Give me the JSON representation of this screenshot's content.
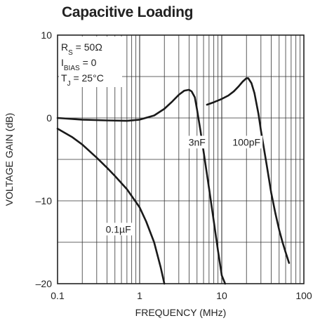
{
  "chart_data": {
    "type": "line",
    "title": "Capacitive Loading",
    "xlabel": "FREQUENCY (MHz)",
    "ylabel": "VOLTAGE GAIN (dB)",
    "x_scale": "log",
    "xlim": [
      0.1,
      100
    ],
    "ylim": [
      -20,
      10
    ],
    "x_ticks": [
      0.1,
      1,
      10,
      100
    ],
    "x_tick_labels": [
      "0.1",
      "1",
      "10",
      "100"
    ],
    "y_ticks": [
      -20,
      -10,
      0,
      10
    ],
    "y_tick_labels": [
      "–20",
      "–10",
      "0",
      "10"
    ],
    "grid": true,
    "conditions": [
      {
        "main": "R",
        "sub": "S",
        "rest": " = 50Ω"
      },
      {
        "main": "I",
        "sub": "BIAS",
        "rest": " = 0"
      },
      {
        "main": "T",
        "sub": "J",
        "rest": " = 25°C"
      }
    ],
    "series": [
      {
        "name": "3nF",
        "x": [
          0.1,
          0.2,
          0.4,
          0.7,
          1.0,
          1.5,
          2.0,
          2.5,
          3.0,
          3.5,
          4.0,
          4.3,
          4.7,
          5.0,
          5.5,
          6.0,
          7.0,
          8.0,
          9.0,
          10.0,
          11.0
        ],
        "y": [
          0.0,
          -0.2,
          -0.3,
          -0.35,
          -0.2,
          0.3,
          1.1,
          2.0,
          2.8,
          3.3,
          3.4,
          3.2,
          2.5,
          1.0,
          -1.5,
          -4.0,
          -8.5,
          -12.5,
          -16.0,
          -19.0,
          -20.0
        ]
      },
      {
        "name": "100pF",
        "x": [
          6.6,
          8.0,
          10.0,
          12.0,
          14.0,
          16.0,
          18.0,
          20.0,
          21.0,
          23.0,
          25.0,
          28.0,
          30.0,
          35.0,
          40.0,
          45.0,
          50.0,
          55.0,
          60.0,
          66.0
        ],
        "y": [
          1.6,
          1.9,
          2.3,
          2.7,
          3.2,
          3.8,
          4.4,
          4.8,
          4.8,
          4.2,
          3.0,
          0.5,
          -1.5,
          -5.5,
          -9.0,
          -11.5,
          -13.5,
          -15.0,
          -16.2,
          -17.5
        ]
      },
      {
        "name": "0.1µF",
        "x": [
          0.1,
          0.15,
          0.2,
          0.3,
          0.4,
          0.5,
          0.7,
          1.0,
          1.2,
          1.5,
          1.8,
          2.0
        ],
        "y": [
          -1.3,
          -2.3,
          -3.2,
          -4.8,
          -6.0,
          -7.0,
          -8.6,
          -10.8,
          -12.5,
          -15.0,
          -18.0,
          -20.0
        ]
      }
    ],
    "curve_labels": [
      "3nF",
      "100pF",
      "0.1µF"
    ]
  }
}
